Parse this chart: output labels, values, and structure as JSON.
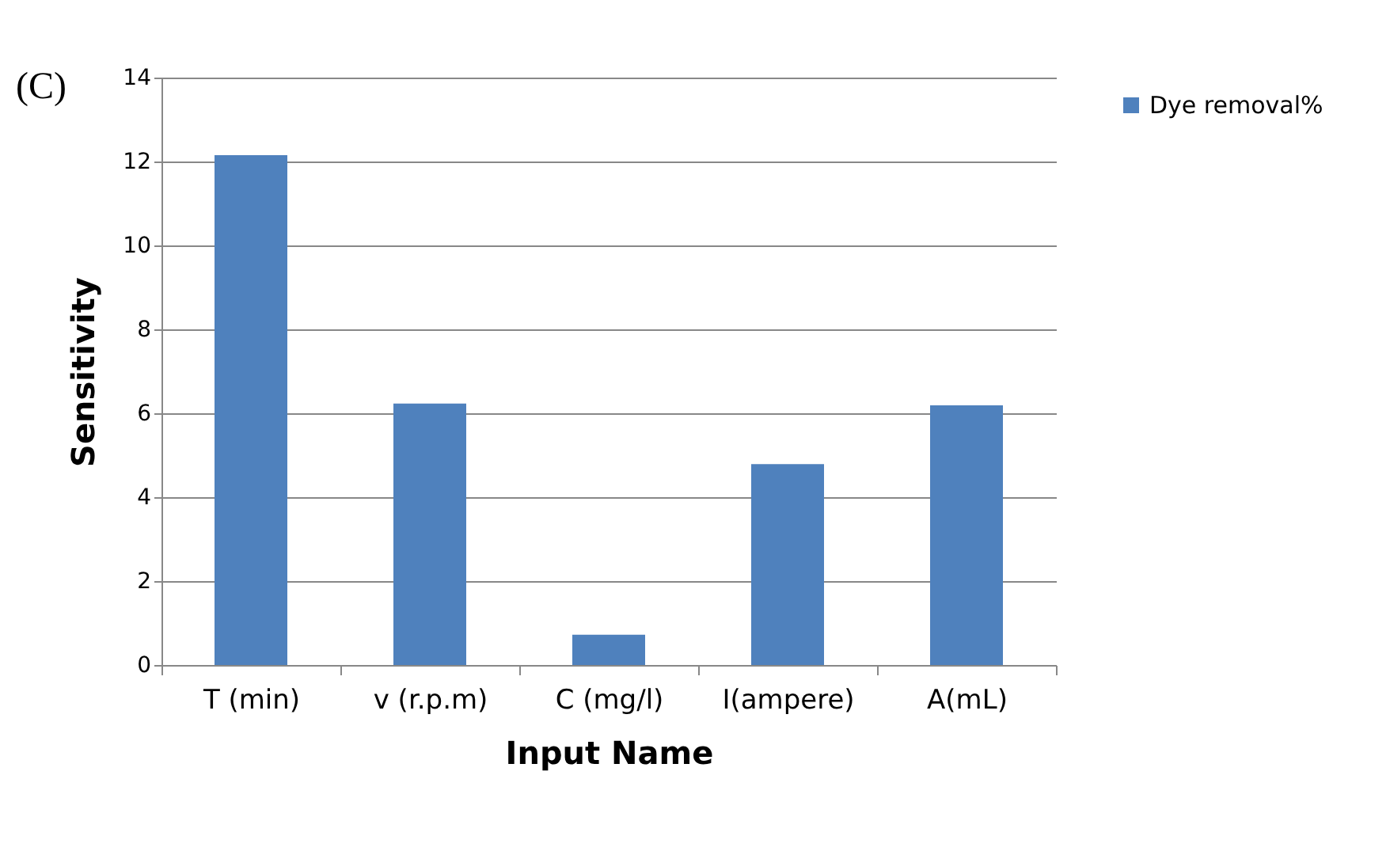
{
  "chart_data": {
    "type": "bar",
    "title": "(C)",
    "xlabel": "Input Name",
    "ylabel": "Sensitivity",
    "categories": [
      "T (min)",
      "v (r.p.m)",
      "C (mg/l)",
      "I(ampere)",
      "A(mL)"
    ],
    "series": [
      {
        "name": "Dye removal%",
        "color": "#4f81bd",
        "values": [
          12.15,
          6.23,
          0.72,
          4.79,
          6.19
        ]
      }
    ],
    "ylim": [
      0,
      14
    ],
    "yticks": [
      0,
      2,
      4,
      6,
      8,
      10,
      12,
      14
    ],
    "grid": "y",
    "legend": "right"
  }
}
